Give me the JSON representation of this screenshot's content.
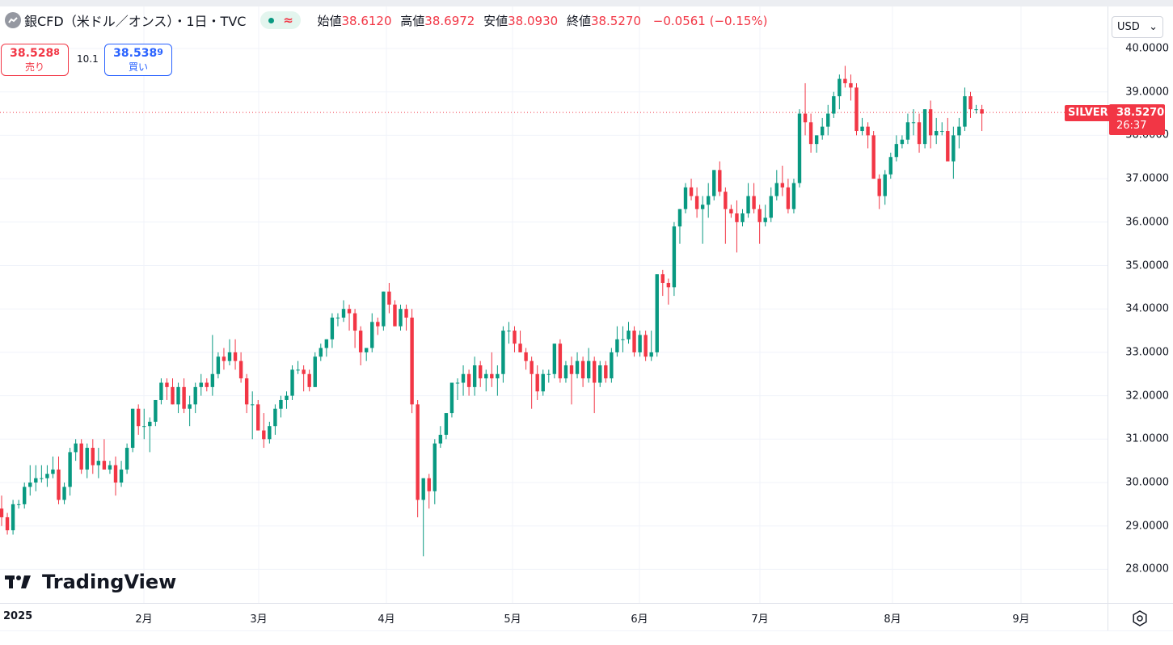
{
  "legend": {
    "symbol": "銀CFD（米ドル／オンス）・1日・TVC",
    "approx": "≈",
    "open_label": "始値",
    "open": "38.6120",
    "high_label": "高値",
    "high": "38.6972",
    "low_label": "安値",
    "low": "38.0930",
    "close_label": "終値",
    "close": "38.5270",
    "change": "−0.0561 (−0.15%)"
  },
  "trade": {
    "sell_price_main": "38.528",
    "sell_price_small": "8",
    "sell_label": "売り",
    "spread": "10.1",
    "buy_price_main": "38.538",
    "buy_price_small": "9",
    "buy_label": "買い"
  },
  "currency": {
    "label": "USD",
    "arrow": "⌄"
  },
  "last_price": {
    "symbol": "SILVER",
    "price": "38.5270",
    "countdown": "26:37"
  },
  "brand": {
    "name": "TradingView"
  },
  "colors": {
    "up": "#089981",
    "down": "#f23645",
    "grid": "#f0f3fa",
    "current_line": "#f23645"
  },
  "chart_data": {
    "type": "candlestick",
    "interval": "1D",
    "y_ticks": [
      "40.0000",
      "39.0000",
      "38.0000",
      "37.0000",
      "36.0000",
      "35.0000",
      "34.0000",
      "33.0000",
      "32.0000",
      "31.0000",
      "30.0000",
      "29.0000",
      "28.0000"
    ],
    "x_ticks": [
      "2025",
      "2月",
      "3月",
      "4月",
      "5月",
      "6月",
      "7月",
      "8月",
      "9月"
    ],
    "ylim": [
      27.2,
      40.9
    ],
    "grid": true,
    "candles": [
      [
        29.4,
        29.7,
        29.0,
        29.2
      ],
      [
        29.2,
        29.3,
        28.8,
        28.9
      ],
      [
        28.9,
        29.6,
        28.8,
        29.5
      ],
      [
        29.5,
        29.6,
        29.4,
        29.5
      ],
      [
        29.5,
        30.0,
        29.4,
        29.9
      ],
      [
        29.9,
        30.4,
        29.7,
        30.0
      ],
      [
        30.0,
        30.4,
        29.8,
        30.1
      ],
      [
        30.1,
        30.4,
        30.0,
        30.1
      ],
      [
        30.1,
        30.4,
        29.9,
        30.2
      ],
      [
        30.2,
        30.6,
        30.1,
        30.3
      ],
      [
        30.3,
        30.6,
        29.5,
        29.6
      ],
      [
        29.6,
        30.0,
        29.5,
        29.9
      ],
      [
        29.9,
        30.8,
        29.7,
        30.7
      ],
      [
        30.7,
        31.0,
        30.5,
        30.9
      ],
      [
        30.9,
        31.0,
        30.2,
        30.3
      ],
      [
        30.3,
        30.9,
        30.1,
        30.8
      ],
      [
        30.8,
        31.0,
        30.2,
        30.4
      ],
      [
        30.4,
        30.8,
        30.1,
        30.5
      ],
      [
        30.5,
        31.0,
        30.3,
        30.3
      ],
      [
        30.3,
        30.5,
        30.2,
        30.4
      ],
      [
        30.4,
        30.6,
        29.7,
        30.0
      ],
      [
        30.0,
        30.5,
        29.9,
        30.3
      ],
      [
        30.3,
        30.9,
        30.2,
        30.8
      ],
      [
        30.8,
        31.7,
        30.7,
        31.7
      ],
      [
        31.7,
        31.8,
        31.1,
        31.3
      ],
      [
        31.3,
        31.7,
        31.0,
        31.3
      ],
      [
        31.3,
        31.5,
        30.7,
        31.4
      ],
      [
        31.4,
        31.9,
        31.3,
        31.9
      ],
      [
        31.9,
        32.4,
        31.8,
        32.3
      ],
      [
        32.3,
        32.4,
        31.9,
        32.2
      ],
      [
        32.2,
        32.4,
        31.8,
        31.8
      ],
      [
        31.8,
        32.3,
        31.6,
        32.2
      ],
      [
        32.2,
        32.4,
        31.6,
        31.7
      ],
      [
        31.7,
        32.0,
        31.3,
        31.8
      ],
      [
        31.8,
        32.3,
        31.6,
        32.2
      ],
      [
        32.2,
        32.5,
        32.0,
        32.3
      ],
      [
        32.3,
        32.4,
        32.1,
        32.2
      ],
      [
        32.2,
        33.4,
        32.0,
        32.5
      ],
      [
        32.5,
        33.0,
        32.4,
        32.9
      ],
      [
        32.9,
        33.1,
        32.6,
        32.8
      ],
      [
        32.8,
        33.3,
        32.7,
        33.0
      ],
      [
        33.0,
        33.3,
        32.6,
        32.8
      ],
      [
        32.8,
        33.0,
        32.3,
        32.4
      ],
      [
        32.4,
        32.5,
        31.6,
        31.8
      ],
      [
        31.8,
        32.1,
        31.0,
        31.8
      ],
      [
        31.8,
        31.9,
        31.2,
        31.2
      ],
      [
        31.2,
        31.6,
        30.8,
        31.0
      ],
      [
        31.0,
        31.4,
        30.9,
        31.3
      ],
      [
        31.3,
        31.8,
        31.1,
        31.7
      ],
      [
        31.7,
        32.0,
        31.5,
        31.9
      ],
      [
        31.9,
        32.1,
        31.7,
        32.0
      ],
      [
        32.0,
        32.7,
        31.9,
        32.6
      ],
      [
        32.6,
        32.8,
        32.5,
        32.6
      ],
      [
        32.6,
        32.7,
        32.1,
        32.5
      ],
      [
        32.5,
        32.6,
        32.1,
        32.2
      ],
      [
        32.2,
        33.0,
        32.2,
        32.9
      ],
      [
        32.9,
        33.2,
        32.8,
        33.1
      ],
      [
        33.1,
        33.3,
        32.9,
        33.3
      ],
      [
        33.3,
        33.9,
        33.1,
        33.8
      ],
      [
        33.8,
        33.9,
        33.6,
        33.8
      ],
      [
        33.8,
        34.2,
        33.7,
        34.0
      ],
      [
        34.0,
        34.1,
        33.5,
        33.9
      ],
      [
        33.9,
        34.0,
        33.1,
        33.5
      ],
      [
        33.5,
        33.6,
        32.7,
        33.0
      ],
      [
        33.0,
        33.1,
        32.8,
        33.1
      ],
      [
        33.1,
        33.9,
        33.0,
        33.7
      ],
      [
        33.7,
        33.8,
        33.4,
        33.6
      ],
      [
        33.6,
        34.4,
        33.5,
        34.4
      ],
      [
        34.4,
        34.6,
        33.9,
        34.1
      ],
      [
        34.1,
        34.2,
        33.6,
        33.6
      ],
      [
        33.6,
        34.1,
        33.5,
        34.0
      ],
      [
        34.0,
        34.1,
        33.5,
        33.8
      ],
      [
        33.8,
        34.0,
        31.6,
        31.8
      ],
      [
        31.8,
        31.9,
        29.2,
        29.6
      ],
      [
        29.6,
        30.1,
        28.3,
        30.1
      ],
      [
        30.1,
        30.2,
        29.4,
        29.8
      ],
      [
        29.8,
        31.0,
        29.5,
        30.9
      ],
      [
        30.9,
        31.3,
        30.8,
        31.1
      ],
      [
        31.1,
        31.6,
        31.0,
        31.6
      ],
      [
        31.6,
        32.3,
        31.5,
        32.3
      ],
      [
        32.3,
        32.4,
        31.9,
        32.3
      ],
      [
        32.3,
        32.7,
        32.0,
        32.5
      ],
      [
        32.5,
        32.6,
        32.0,
        32.2
      ],
      [
        32.2,
        32.9,
        32.0,
        32.7
      ],
      [
        32.7,
        32.8,
        32.2,
        32.4
      ],
      [
        32.4,
        32.6,
        32.1,
        32.5
      ],
      [
        32.5,
        33.0,
        32.2,
        32.4
      ],
      [
        32.4,
        32.7,
        32.0,
        32.5
      ],
      [
        32.5,
        33.6,
        32.3,
        33.5
      ],
      [
        33.5,
        33.7,
        33.2,
        33.5
      ],
      [
        33.5,
        33.6,
        33.0,
        33.2
      ],
      [
        33.2,
        33.5,
        33.0,
        33.0
      ],
      [
        33.0,
        33.1,
        32.6,
        32.8
      ],
      [
        32.8,
        32.9,
        31.7,
        32.5
      ],
      [
        32.5,
        32.7,
        31.9,
        32.1
      ],
      [
        32.1,
        32.6,
        32.0,
        32.5
      ],
      [
        32.5,
        32.6,
        32.3,
        32.5
      ],
      [
        32.5,
        33.2,
        32.4,
        33.2
      ],
      [
        33.2,
        33.3,
        32.3,
        32.4
      ],
      [
        32.4,
        32.8,
        32.3,
        32.7
      ],
      [
        32.7,
        32.9,
        31.8,
        32.5
      ],
      [
        32.5,
        33.0,
        32.4,
        32.8
      ],
      [
        32.8,
        32.9,
        32.2,
        32.4
      ],
      [
        32.4,
        33.1,
        32.3,
        32.8
      ],
      [
        32.8,
        32.9,
        31.6,
        32.3
      ],
      [
        32.3,
        32.8,
        32.2,
        32.7
      ],
      [
        32.7,
        32.8,
        32.3,
        32.4
      ],
      [
        32.4,
        33.1,
        32.3,
        33.0
      ],
      [
        33.0,
        33.6,
        32.9,
        33.3
      ],
      [
        33.3,
        33.6,
        33.0,
        33.3
      ],
      [
        33.3,
        33.7,
        33.2,
        33.5
      ],
      [
        33.5,
        33.6,
        32.9,
        33.0
      ],
      [
        33.0,
        33.5,
        32.9,
        33.4
      ],
      [
        33.4,
        33.5,
        32.8,
        32.9
      ],
      [
        32.9,
        33.5,
        32.8,
        33.0
      ],
      [
        33.0,
        34.8,
        32.9,
        34.8
      ],
      [
        34.8,
        34.9,
        34.3,
        34.6
      ],
      [
        34.6,
        34.7,
        34.1,
        34.5
      ],
      [
        34.5,
        36.0,
        34.3,
        35.9
      ],
      [
        35.9,
        36.3,
        35.5,
        36.3
      ],
      [
        36.3,
        36.9,
        36.2,
        36.8
      ],
      [
        36.8,
        37.0,
        36.5,
        36.6
      ],
      [
        36.6,
        36.8,
        36.1,
        36.3
      ],
      [
        36.3,
        36.6,
        35.5,
        36.4
      ],
      [
        36.4,
        36.9,
        36.1,
        36.6
      ],
      [
        36.6,
        37.2,
        36.5,
        37.2
      ],
      [
        37.2,
        37.4,
        36.6,
        36.7
      ],
      [
        36.7,
        36.8,
        35.5,
        36.3
      ],
      [
        36.3,
        36.4,
        36.1,
        36.2
      ],
      [
        36.2,
        36.5,
        35.3,
        36.0
      ],
      [
        36.0,
        36.3,
        35.9,
        36.2
      ],
      [
        36.2,
        36.9,
        36.1,
        36.6
      ],
      [
        36.6,
        36.9,
        36.2,
        36.3
      ],
      [
        36.3,
        36.4,
        35.5,
        36.0
      ],
      [
        36.0,
        36.4,
        35.9,
        36.1
      ],
      [
        36.1,
        36.8,
        36.0,
        36.6
      ],
      [
        36.6,
        37.2,
        36.5,
        36.9
      ],
      [
        36.9,
        37.3,
        36.6,
        36.8
      ],
      [
        36.8,
        37.0,
        36.2,
        36.3
      ],
      [
        36.3,
        37.0,
        36.2,
        36.9
      ],
      [
        36.9,
        38.6,
        36.8,
        38.5
      ],
      [
        38.5,
        39.2,
        38.0,
        38.3
      ],
      [
        38.3,
        38.5,
        37.6,
        37.8
      ],
      [
        37.8,
        38.0,
        37.6,
        38.0
      ],
      [
        38.0,
        38.4,
        37.9,
        38.2
      ],
      [
        38.2,
        38.7,
        38.0,
        38.5
      ],
      [
        38.5,
        39.0,
        38.4,
        38.9
      ],
      [
        38.9,
        39.4,
        38.6,
        39.3
      ],
      [
        39.3,
        39.6,
        39.1,
        39.2
      ],
      [
        39.2,
        39.4,
        38.8,
        39.1
      ],
      [
        39.1,
        39.2,
        38.0,
        38.1
      ],
      [
        38.1,
        38.4,
        38.0,
        38.2
      ],
      [
        38.2,
        38.3,
        37.7,
        38.0
      ],
      [
        38.0,
        38.1,
        37.0,
        37.0
      ],
      [
        37.0,
        37.1,
        36.3,
        36.6
      ],
      [
        36.6,
        37.2,
        36.4,
        37.1
      ],
      [
        37.1,
        37.6,
        37.0,
        37.5
      ],
      [
        37.5,
        38.0,
        37.4,
        37.8
      ],
      [
        37.8,
        38.0,
        37.7,
        37.9
      ],
      [
        37.9,
        38.5,
        37.8,
        38.3
      ],
      [
        38.3,
        38.6,
        38.0,
        38.3
      ],
      [
        38.3,
        38.5,
        37.6,
        37.8
      ],
      [
        37.8,
        38.6,
        37.7,
        38.6
      ],
      [
        38.6,
        38.8,
        37.7,
        38.0
      ],
      [
        38.0,
        38.4,
        37.8,
        38.1
      ],
      [
        38.1,
        38.3,
        38.0,
        38.1
      ],
      [
        38.1,
        38.4,
        37.5,
        37.4
      ],
      [
        37.4,
        38.2,
        37.0,
        38.0
      ],
      [
        38.0,
        38.4,
        37.7,
        38.2
      ],
      [
        38.2,
        39.1,
        38.1,
        38.9
      ],
      [
        38.9,
        39.0,
        38.4,
        38.6
      ],
      [
        38.6,
        38.7,
        38.5,
        38.6
      ],
      [
        38.6,
        38.7,
        38.1,
        38.5
      ]
    ]
  }
}
